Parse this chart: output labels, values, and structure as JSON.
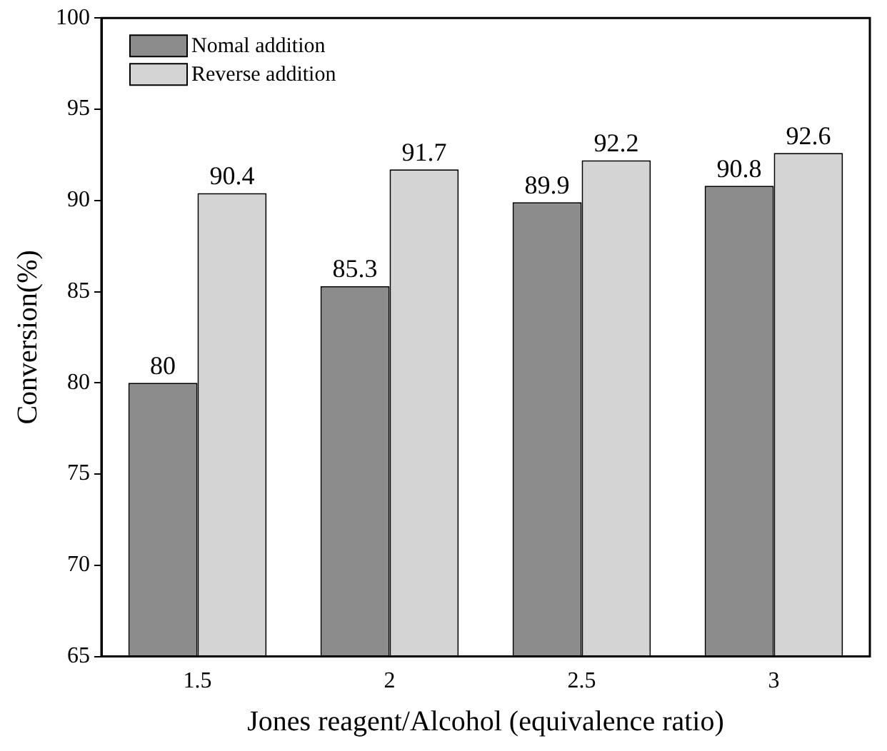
{
  "chart_data": {
    "type": "bar",
    "xlabel": "Jones reagent/Alcohol (equivalence ratio)",
    "ylabel": "Conversion(%)",
    "categories": [
      "1.5",
      "2",
      "2.5",
      "3"
    ],
    "series": [
      {
        "name": "Nomal addition",
        "color": "#8c8c8c",
        "values": [
          80,
          85.3,
          89.9,
          90.8
        ]
      },
      {
        "name": "Reverse addition",
        "color": "#d4d4d4",
        "values": [
          90.4,
          91.7,
          92.2,
          92.6
        ]
      }
    ],
    "ylim": [
      65,
      100
    ],
    "yticks": [
      65,
      70,
      75,
      80,
      85,
      90,
      95,
      100
    ],
    "data_labels": true,
    "legend": "top left",
    "grid": false
  }
}
